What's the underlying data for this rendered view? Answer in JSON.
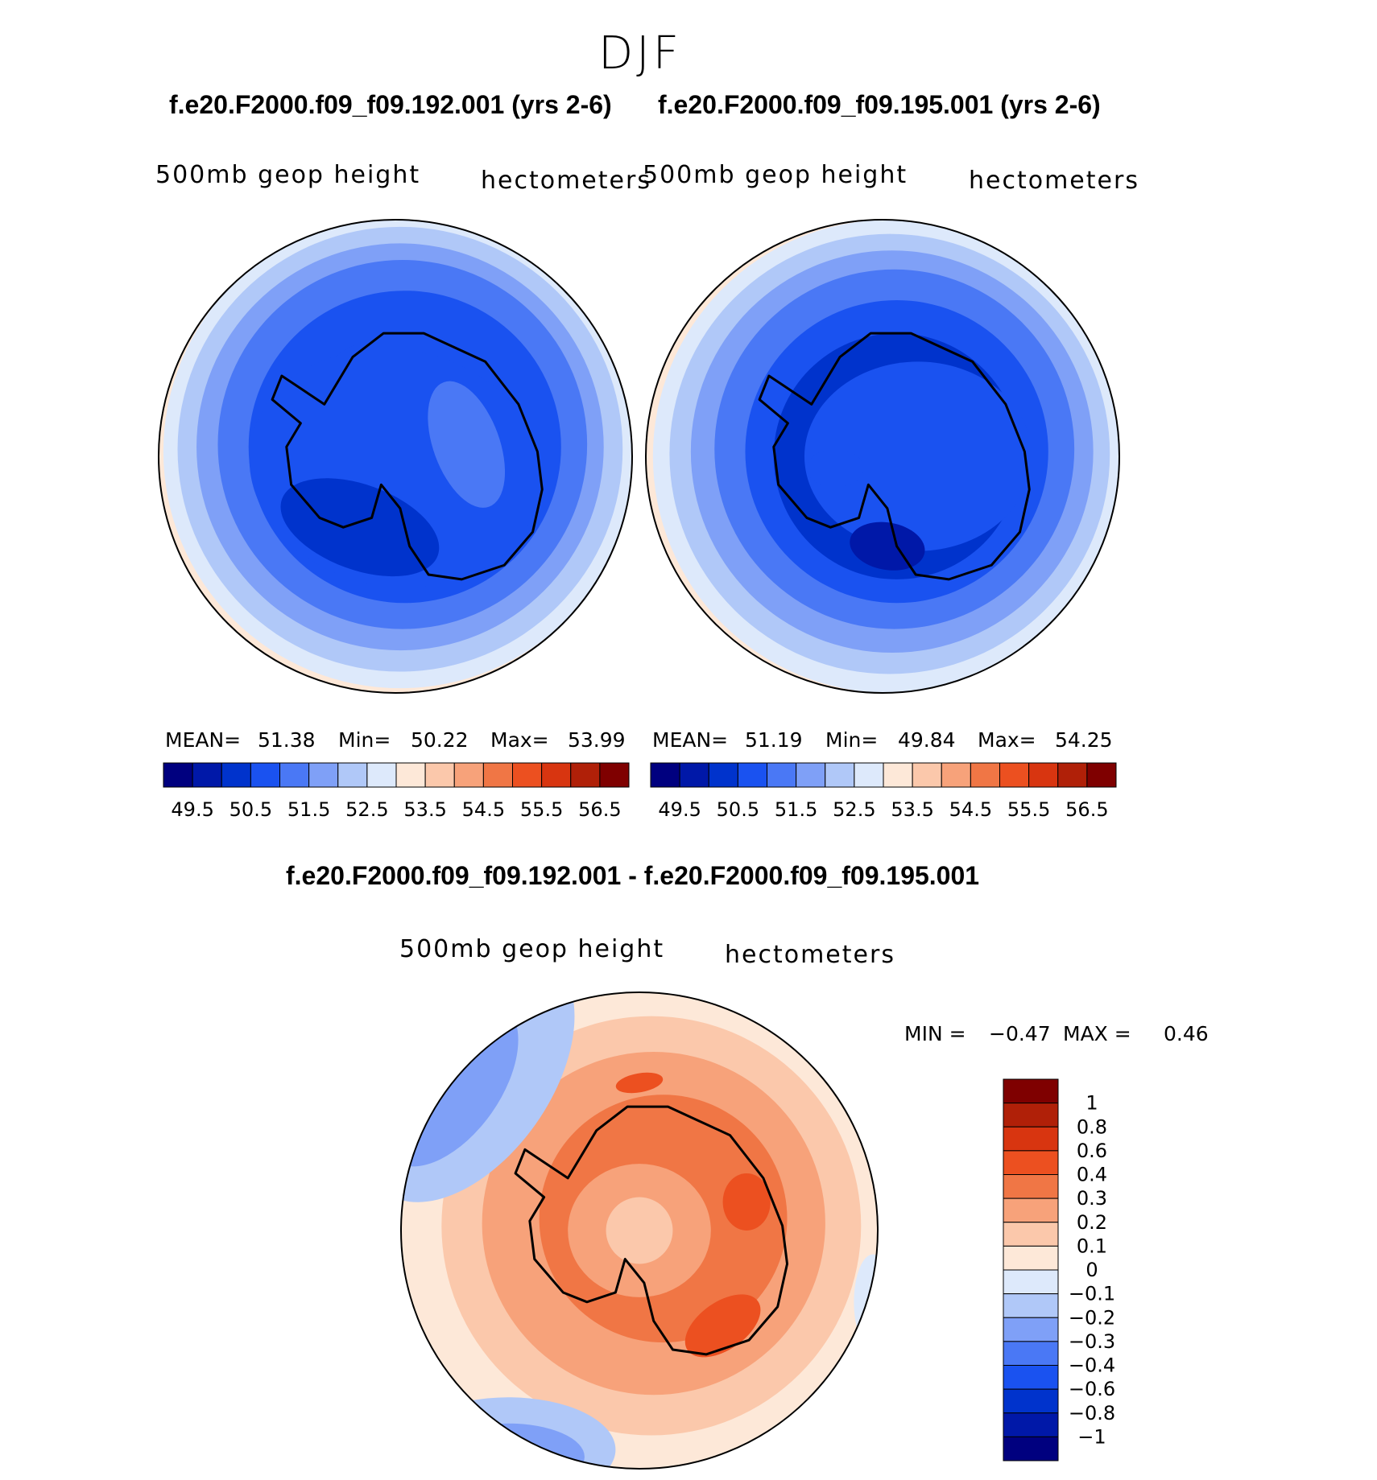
{
  "title": "DJF",
  "colors": {
    "scale": [
      "#00007f",
      "#0018a8",
      "#0033cc",
      "#1a52f0",
      "#4a78f5",
      "#7fa0f7",
      "#b0c8f8",
      "#dde9fb",
      "#fde8d8",
      "#fbc8ab",
      "#f7a27a",
      "#f07645",
      "#ec5020",
      "#d83510",
      "#b02008",
      "#7f0000"
    ],
    "diff_scale": [
      "#00007f",
      "#0018a8",
      "#0033cc",
      "#1a52f0",
      "#4a78f5",
      "#7fa0f7",
      "#b0c8f8",
      "#dde9fb",
      "#fde8d8",
      "#fbc8ab",
      "#f7a27a",
      "#f07645",
      "#ec5020",
      "#d83510",
      "#b02008",
      "#7f0000"
    ],
    "land_outline": "#000000"
  },
  "panels": [
    {
      "case_title": "f.e20.F2000.f09_f09.192.001 (yrs 2-6)",
      "variable": "500mb geop height",
      "units": "hectometers",
      "stats": {
        "mean_label": "MEAN=",
        "mean": "51.38",
        "min_label": "Min=",
        "min": "50.22",
        "max_label": "Max=",
        "max": "53.99"
      }
    },
    {
      "case_title": "f.e20.F2000.f09_f09.195.001 (yrs 2-6)",
      "variable": "500mb geop height",
      "units": "hectometers",
      "stats": {
        "mean_label": "MEAN=",
        "mean": "51.19",
        "min_label": "Min=",
        "min": "49.84",
        "max_label": "Max=",
        "max": "54.25"
      }
    }
  ],
  "diff_panel": {
    "title": "f.e20.F2000.f09_f09.192.001 - f.e20.F2000.f09_f09.195.001",
    "variable": "500mb geop height",
    "units": "hectometers",
    "stats": {
      "min_label": "MIN =",
      "min": "−0.47",
      "max_label": "MAX =",
      "max": "0.46"
    }
  },
  "chart_data": [
    {
      "type": "heatmap",
      "title": "500mb geop height",
      "subtitle": "f.e20.F2000.f09_f09.192.001 (yrs 2-6)",
      "units": "hectometers",
      "projection": "south polar stereographic",
      "contour_levels": [
        49.5,
        50,
        50.5,
        51,
        51.5,
        52,
        52.5,
        53,
        53.5,
        54,
        54.5,
        55,
        55.5,
        56,
        56.5
      ],
      "colorbar_tick_labels": [
        "49.5",
        "50.5",
        "51.5",
        "52.5",
        "53.5",
        "54.5",
        "55.5",
        "56.5"
      ],
      "mean": 51.38,
      "min": 50.22,
      "max": 53.99
    },
    {
      "type": "heatmap",
      "title": "500mb geop height",
      "subtitle": "f.e20.F2000.f09_f09.195.001 (yrs 2-6)",
      "units": "hectometers",
      "projection": "south polar stereographic",
      "contour_levels": [
        49.5,
        50,
        50.5,
        51,
        51.5,
        52,
        52.5,
        53,
        53.5,
        54,
        54.5,
        55,
        55.5,
        56,
        56.5
      ],
      "colorbar_tick_labels": [
        "49.5",
        "50.5",
        "51.5",
        "52.5",
        "53.5",
        "54.5",
        "55.5",
        "56.5"
      ],
      "mean": 51.19,
      "min": 49.84,
      "max": 54.25
    },
    {
      "type": "heatmap",
      "title": "500mb geop height",
      "subtitle": "f.e20.F2000.f09_f09.192.001 - f.e20.F2000.f09_f09.195.001",
      "units": "hectometers",
      "projection": "south polar stereographic",
      "contour_levels": [
        -1,
        -0.8,
        -0.6,
        -0.4,
        -0.3,
        -0.2,
        -0.1,
        0,
        0.1,
        0.2,
        0.3,
        0.4,
        0.6,
        0.8,
        1
      ],
      "colorbar_tick_labels": [
        "1",
        "0.8",
        "0.6",
        "0.4",
        "0.3",
        "0.2",
        "0.1",
        "0",
        "−0.1",
        "−0.2",
        "−0.3",
        "−0.4",
        "−0.6",
        "−0.8",
        "−1"
      ],
      "min": -0.47,
      "max": 0.46
    }
  ]
}
